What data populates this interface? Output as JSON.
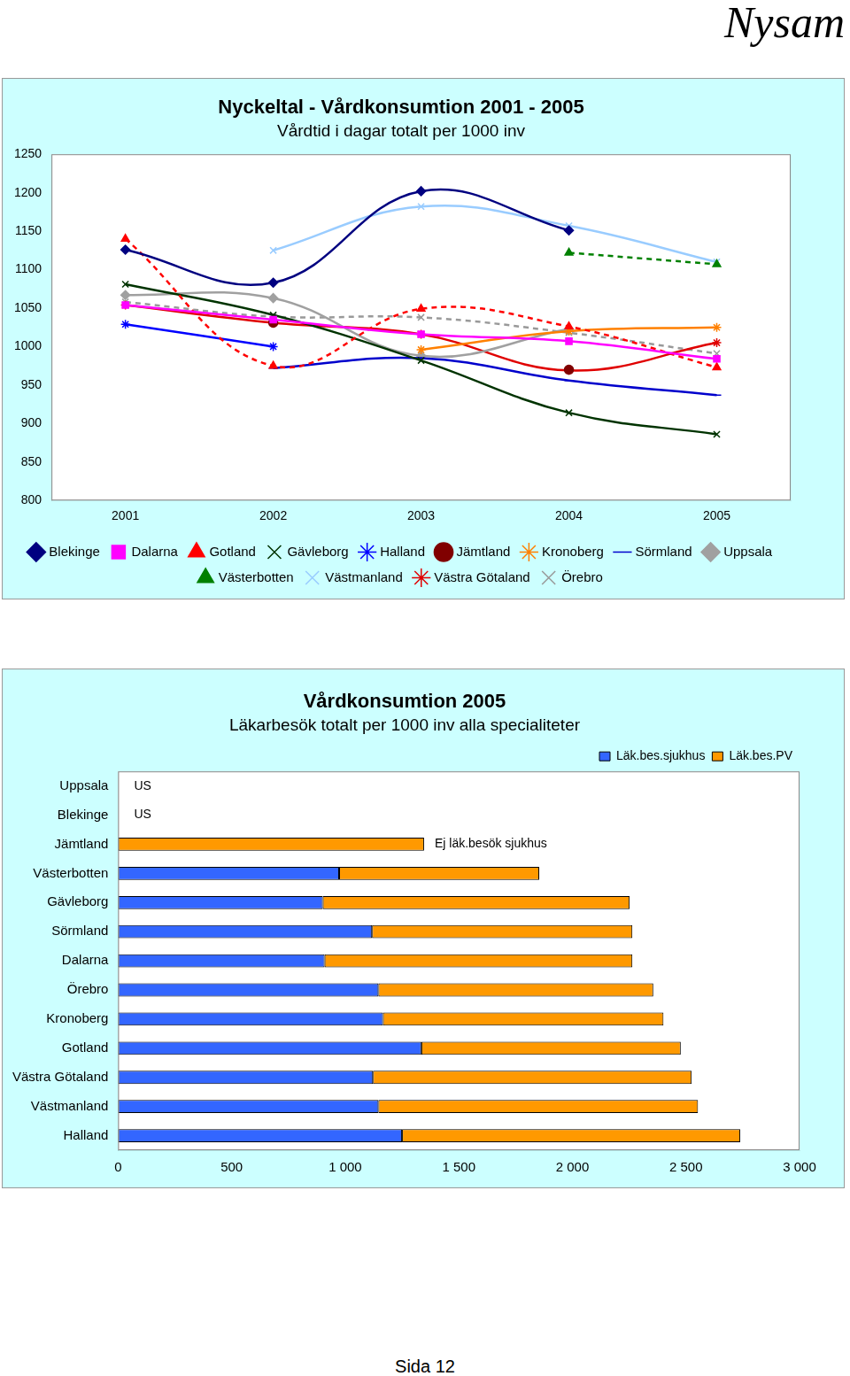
{
  "page": {
    "header": "Nysam",
    "footer": "Sida 12"
  },
  "chart_data": [
    {
      "type": "line",
      "title": "Nyckeltal - Vårdkonsumtion 2001 - 2005",
      "subtitle": "Vårdtid i dagar totalt per 1000 inv",
      "categories": [
        "2001",
        "2002",
        "2003",
        "2004",
        "2005"
      ],
      "ylim": [
        800,
        1250
      ],
      "yticks": [
        800,
        850,
        900,
        950,
        1000,
        1050,
        1100,
        1150,
        1200,
        1250
      ],
      "grid": false,
      "legend": "bottom",
      "series": [
        {
          "name": "Blekinge",
          "color": "#000080",
          "marker": "diamond",
          "line_style": "solid",
          "values": [
            1126,
            1083,
            1202,
            1151,
            null
          ]
        },
        {
          "name": "Dalarna",
          "color": "#ff00ff",
          "marker": "square",
          "line_style": "solid",
          "values": [
            1054,
            1035,
            1016,
            1007,
            984
          ]
        },
        {
          "name": "Gotland",
          "color": "#ff0000",
          "marker": "triangle",
          "line_style": "dashed",
          "values": [
            1140,
            975,
            1049,
            1026,
            973
          ]
        },
        {
          "name": "Gävleborg",
          "color": "#003300",
          "marker": "x",
          "line_style": "solid",
          "values": [
            1081,
            1041,
            982,
            914,
            886
          ]
        },
        {
          "name": "Halland",
          "color": "#0000ff",
          "marker": "star",
          "line_style": "solid",
          "values": [
            1029,
            1000,
            null,
            null,
            null
          ]
        },
        {
          "name": "Jämtland",
          "color": "#800000",
          "marker": "circle",
          "line_style": "solid",
          "values": [
            null,
            1031,
            null,
            970,
            null
          ]
        },
        {
          "name": "Kronoberg",
          "color": "#ff8000",
          "marker": "star",
          "line_style": "solid",
          "values": [
            null,
            null,
            996,
            1020,
            1025
          ]
        },
        {
          "name": "Sörmland",
          "color": "#0000cc",
          "marker": "dash",
          "line_style": "solid",
          "values": [
            null,
            972,
            985,
            956,
            937
          ]
        },
        {
          "name": "Uppsala",
          "color": "#a0a0a0",
          "marker": "diamond",
          "line_style": "solid",
          "values": [
            1067,
            1063,
            988,
            1023,
            null
          ]
        },
        {
          "name": "Västerbotten",
          "color": "#008000",
          "marker": "triangle",
          "line_style": "dashed",
          "values": [
            null,
            null,
            null,
            1122,
            1107
          ]
        },
        {
          "name": "Västmanland",
          "color": "#99ccff",
          "marker": "x",
          "line_style": "solid",
          "values": [
            null,
            1125,
            1182,
            1157,
            1110
          ]
        },
        {
          "name": "Västra Götaland",
          "color": "#e00000",
          "marker": "star",
          "line_style": "solid",
          "values": [
            1054,
            1031,
            1016,
            969,
            1005
          ]
        },
        {
          "name": "Örebro",
          "color": "#999999",
          "marker": "x",
          "line_style": "dashed",
          "values": [
            1058,
            1039,
            1038,
            1018,
            991
          ]
        }
      ]
    },
    {
      "type": "bar",
      "title": "Vårdkonsumtion 2005",
      "subtitle": "Läkarbesök totalt per 1000 inv alla specialiteter",
      "orientation": "horizontal",
      "stacked": true,
      "grid": false,
      "legend": "top right",
      "categories": [
        "Uppsala",
        "Blekinge",
        "Jämtland",
        "Västerbotten",
        "Gävleborg",
        "Sörmland",
        "Dalarna",
        "Örebro",
        "Kronoberg",
        "Gotland",
        "Västra Götaland",
        "Västmanland",
        "Halland"
      ],
      "xlim": [
        0,
        3000
      ],
      "xticks": [
        0,
        500,
        {
          "value": 1000,
          "label": "1 000"
        },
        {
          "value": 1500,
          "label": "1 500"
        },
        {
          "value": 2000,
          "label": "2 000"
        },
        {
          "value": 2500,
          "label": "2 500"
        },
        {
          "value": 3000,
          "label": "3 000"
        }
      ],
      "series": [
        {
          "name": "Läk.bes.sjukhus",
          "color": "#3366ff",
          "values": [
            null,
            null,
            null,
            973,
            901,
            1118,
            909,
            1146,
            1166,
            1335,
            1122,
            1146,
            1250
          ]
        },
        {
          "name": "Läk.bes.PV",
          "color": "#ff9900",
          "values": [
            null,
            null,
            1347,
            881,
            1351,
            1146,
            1355,
            1210,
            1235,
            1142,
            1403,
            1407,
            1489
          ]
        }
      ],
      "annotations": [
        {
          "category": "Uppsala",
          "text": "US"
        },
        {
          "category": "Blekinge",
          "text": "US"
        },
        {
          "category": "Jämtland",
          "text": "Ej läk.besök sjukhus"
        }
      ]
    }
  ]
}
